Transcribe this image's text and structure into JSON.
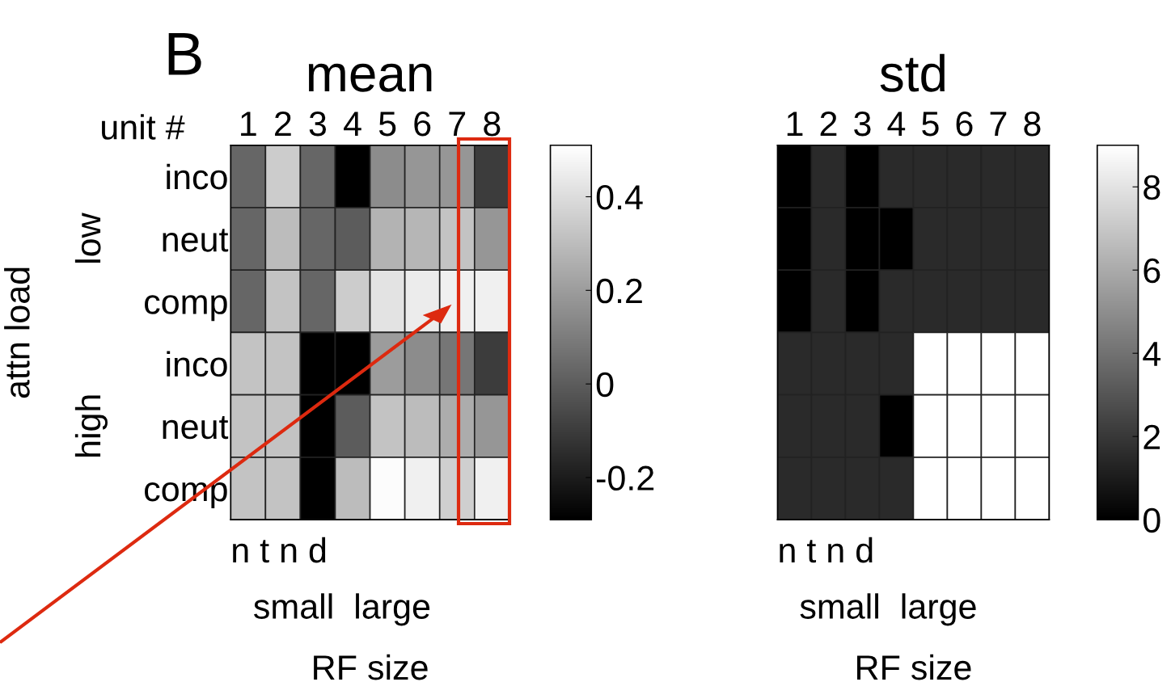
{
  "chart_data": [
    {
      "type": "heatmap",
      "title": "mean",
      "xlabel": "RF size",
      "ylabel": "attn load",
      "categories": [
        "1",
        "2",
        "3",
        "4",
        "5",
        "6",
        "7",
        "8"
      ],
      "y_categories": [
        "inco",
        "neut",
        "comp",
        "inco",
        "neut",
        "comp"
      ],
      "cells": [
        [
          0.03,
          0.35,
          0.03,
          -0.29,
          0.15,
          0.18,
          0.18,
          -0.1
        ],
        [
          0.03,
          0.3,
          0.03,
          0.0,
          0.27,
          0.28,
          0.32,
          0.18
        ],
        [
          0.03,
          0.32,
          0.03,
          0.35,
          0.42,
          0.45,
          0.46,
          0.46
        ],
        [
          0.32,
          0.32,
          -0.29,
          -0.29,
          0.2,
          0.15,
          0.08,
          -0.1
        ],
        [
          0.32,
          0.32,
          -0.29,
          0.0,
          0.32,
          0.3,
          0.25,
          0.18
        ],
        [
          0.32,
          0.32,
          -0.29,
          0.3,
          0.5,
          0.46,
          0.36,
          0.46
        ]
      ],
      "clim": [
        -0.29,
        0.51
      ],
      "cticks": [
        -0.2,
        0,
        0.2,
        0.4
      ],
      "annotations": [
        "B",
        "unit #",
        "low",
        "high",
        "n t n d",
        "small  large"
      ]
    },
    {
      "type": "heatmap",
      "title": "std",
      "xlabel": "RF size",
      "categories": [
        "1",
        "2",
        "3",
        "4",
        "5",
        "6",
        "7",
        "8"
      ],
      "y_categories": [
        null,
        null,
        null,
        null,
        null,
        null
      ],
      "cells": [
        [
          0,
          1.5,
          0,
          1.5,
          1.5,
          1.5,
          1.5,
          1.5
        ],
        [
          0,
          1.5,
          0,
          0,
          1.5,
          1.5,
          1.5,
          1.5
        ],
        [
          0,
          1.5,
          0,
          1.5,
          1.5,
          1.5,
          1.5,
          1.5
        ],
        [
          1.5,
          1.5,
          1.5,
          1.5,
          9,
          9,
          9,
          9
        ],
        [
          1.5,
          1.5,
          1.5,
          0,
          9,
          9,
          9,
          9
        ],
        [
          1.5,
          1.5,
          1.5,
          1.5,
          9,
          9,
          9,
          9
        ]
      ],
      "clim": [
        0,
        9
      ],
      "cticks": [
        0,
        2,
        4,
        6,
        8
      ],
      "tick_labels": "x",
      "annotations": [
        "n t n d",
        "small  large"
      ]
    }
  ]
}
